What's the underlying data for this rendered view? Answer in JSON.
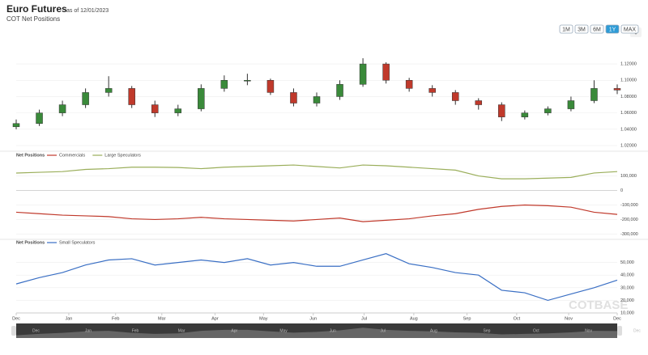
{
  "header": {
    "title": "Euro Futures",
    "date": "as of 12/01/2023",
    "subtitle": "COT Net Positions"
  },
  "range_buttons": [
    "1M",
    "3M",
    "6M",
    "1Y",
    "MAX"
  ],
  "active_button": "1Y",
  "watermark": "COTBASE",
  "chart_data": [
    {
      "type": "candlestick",
      "up_color": "#3a8a3a",
      "down_color": "#c0392b",
      "x": [
        0,
        2,
        4,
        6,
        8,
        10,
        12,
        14,
        16,
        18,
        20,
        22,
        24,
        26,
        28,
        30,
        32,
        34,
        36,
        38,
        40,
        42,
        44,
        46,
        48,
        50,
        52
      ],
      "open": [
        1.043,
        1.047,
        1.06,
        1.07,
        1.085,
        1.09,
        1.07,
        1.06,
        1.065,
        1.09,
        1.1,
        1.1,
        1.085,
        1.072,
        1.08,
        1.095,
        1.12,
        1.1,
        1.09,
        1.085,
        1.075,
        1.07,
        1.055,
        1.06,
        1.065,
        1.075,
        1.09
      ],
      "close": [
        1.047,
        1.06,
        1.07,
        1.085,
        1.09,
        1.07,
        1.06,
        1.065,
        1.09,
        1.1,
        1.1,
        1.085,
        1.072,
        1.08,
        1.095,
        1.12,
        1.1,
        1.09,
        1.085,
        1.075,
        1.07,
        1.055,
        1.06,
        1.065,
        1.075,
        1.09,
        1.088
      ],
      "high": [
        1.052,
        1.064,
        1.075,
        1.09,
        1.105,
        1.093,
        1.075,
        1.07,
        1.095,
        1.106,
        1.108,
        1.102,
        1.09,
        1.085,
        1.1,
        1.127,
        1.122,
        1.103,
        1.094,
        1.088,
        1.078,
        1.073,
        1.063,
        1.068,
        1.08,
        1.1,
        1.095
      ],
      "low": [
        1.04,
        1.044,
        1.056,
        1.066,
        1.08,
        1.066,
        1.055,
        1.056,
        1.062,
        1.086,
        1.094,
        1.082,
        1.068,
        1.068,
        1.076,
        1.092,
        1.096,
        1.086,
        1.08,
        1.07,
        1.064,
        1.05,
        1.052,
        1.057,
        1.062,
        1.072,
        1.083
      ],
      "xlim": [
        0,
        52
      ],
      "ylim": [
        1.02,
        1.13
      ],
      "yticks": [
        {
          "value": 1.02,
          "label": "1.02000"
        },
        {
          "value": 1.04,
          "label": "1.04000"
        },
        {
          "value": 1.06,
          "label": "1.06000"
        },
        {
          "value": 1.08,
          "label": "1.08000"
        },
        {
          "value": 1.1,
          "label": "1.10000"
        },
        {
          "value": 1.12,
          "label": "1.12000"
        }
      ]
    },
    {
      "type": "line",
      "title": "Net Positions",
      "x": [
        0,
        2,
        4,
        6,
        8,
        10,
        12,
        14,
        16,
        18,
        20,
        22,
        24,
        26,
        28,
        30,
        32,
        34,
        36,
        38,
        40,
        42,
        44,
        46,
        48,
        50,
        52
      ],
      "series": [
        {
          "name": "Commercials",
          "color": "#c0392b",
          "values": [
            -150000,
            -160000,
            -170000,
            -175000,
            -180000,
            -195000,
            -200000,
            -195000,
            -185000,
            -195000,
            -200000,
            -205000,
            -210000,
            -200000,
            -190000,
            -215000,
            -205000,
            -195000,
            -175000,
            -160000,
            -130000,
            -110000,
            -100000,
            -105000,
            -115000,
            -150000,
            -165000
          ]
        },
        {
          "name": "Large Speculators",
          "color": "#9aae5a",
          "values": [
            120000,
            125000,
            130000,
            145000,
            150000,
            160000,
            160000,
            158000,
            150000,
            160000,
            165000,
            170000,
            175000,
            165000,
            155000,
            175000,
            170000,
            160000,
            150000,
            140000,
            100000,
            80000,
            80000,
            85000,
            90000,
            120000,
            130000
          ]
        }
      ],
      "xlim": [
        0,
        52
      ],
      "ylim": [
        -320000,
        220000
      ],
      "yticks": [
        {
          "value": -300000,
          "label": "-300,000"
        },
        {
          "value": -200000,
          "label": "-200,000"
        },
        {
          "value": -100000,
          "label": "-100,000"
        },
        0,
        {
          "value": 100000,
          "label": "100,000"
        }
      ]
    },
    {
      "type": "line",
      "title": "Net Positions",
      "x": [
        0,
        2,
        4,
        6,
        8,
        10,
        12,
        14,
        16,
        18,
        20,
        22,
        24,
        26,
        28,
        30,
        32,
        34,
        36,
        38,
        40,
        42,
        44,
        46,
        48,
        50,
        52
      ],
      "series": [
        {
          "name": "Small Speculators",
          "color": "#3a6fc4",
          "values": [
            33000,
            38000,
            42000,
            48000,
            52000,
            53000,
            48000,
            50000,
            52000,
            50000,
            53000,
            48000,
            50000,
            47000,
            47000,
            52000,
            57000,
            49000,
            46000,
            42000,
            40000,
            28000,
            26000,
            20000,
            25000,
            30000,
            36000
          ]
        }
      ],
      "xlim": [
        0,
        52
      ],
      "ylim": [
        10000,
        60000
      ],
      "yticks": [
        {
          "value": 10000,
          "label": "10,000"
        },
        {
          "value": 20000,
          "label": "20,000"
        },
        {
          "value": 30000,
          "label": "30,000"
        },
        {
          "value": 40000,
          "label": "40,000"
        },
        {
          "value": 50000,
          "label": "50,000"
        }
      ],
      "xticks": [
        {
          "value": 0,
          "label": "Dec"
        },
        {
          "value": 4.55,
          "label": "Jan"
        },
        {
          "value": 8.6,
          "label": "Feb"
        },
        {
          "value": 12.6,
          "label": "Mar"
        },
        {
          "value": 17.2,
          "label": "Apr"
        },
        {
          "value": 21.4,
          "label": "May"
        },
        {
          "value": 25.7,
          "label": "Jun"
        },
        {
          "value": 30.1,
          "label": "Jul"
        },
        {
          "value": 34.4,
          "label": "Aug"
        },
        {
          "value": 39,
          "label": "Sep"
        },
        {
          "value": 43.3,
          "label": "Oct"
        },
        {
          "value": 47.8,
          "label": "Nov"
        },
        {
          "value": 52,
          "label": "Dec"
        }
      ]
    }
  ]
}
